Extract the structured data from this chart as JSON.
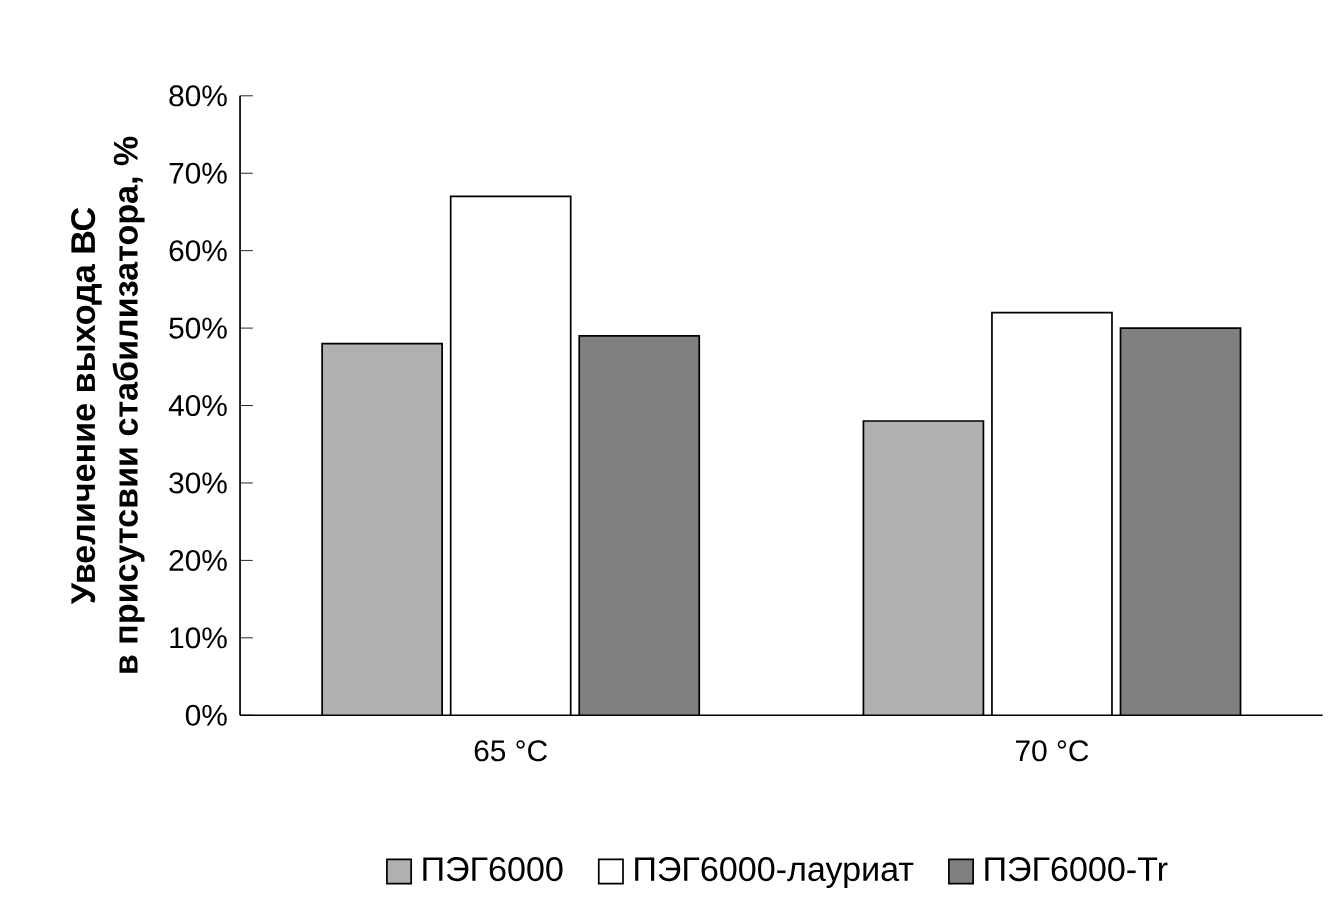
{
  "chart_data": {
    "type": "bar",
    "ylabel": "Увеличение выхода ВС\nв присутсвии стабилизатора, %",
    "categories": [
      "65 °C",
      "70 °C"
    ],
    "series": [
      {
        "name": "ПЭГ6000",
        "color": "#b0b0b0",
        "values": [
          48,
          38
        ]
      },
      {
        "name": "ПЭГ6000-лауриат",
        "color": "#ffffff",
        "values": [
          67,
          52
        ]
      },
      {
        "name": "ПЭГ6000-Tr",
        "color": "#808080",
        "values": [
          49,
          50
        ]
      }
    ],
    "ylim": [
      0,
      80
    ],
    "yticks": [
      {
        "value": 0,
        "label": "0%"
      },
      {
        "value": 10,
        "label": "10%"
      },
      {
        "value": 20,
        "label": "20%"
      },
      {
        "value": 30,
        "label": "30%"
      },
      {
        "value": 40,
        "label": "40%"
      },
      {
        "value": 50,
        "label": "50%"
      },
      {
        "value": 60,
        "label": "60%"
      },
      {
        "value": 70,
        "label": "70%"
      },
      {
        "value": 80,
        "label": "80%"
      }
    ],
    "grid": false,
    "legend": "bottom"
  }
}
